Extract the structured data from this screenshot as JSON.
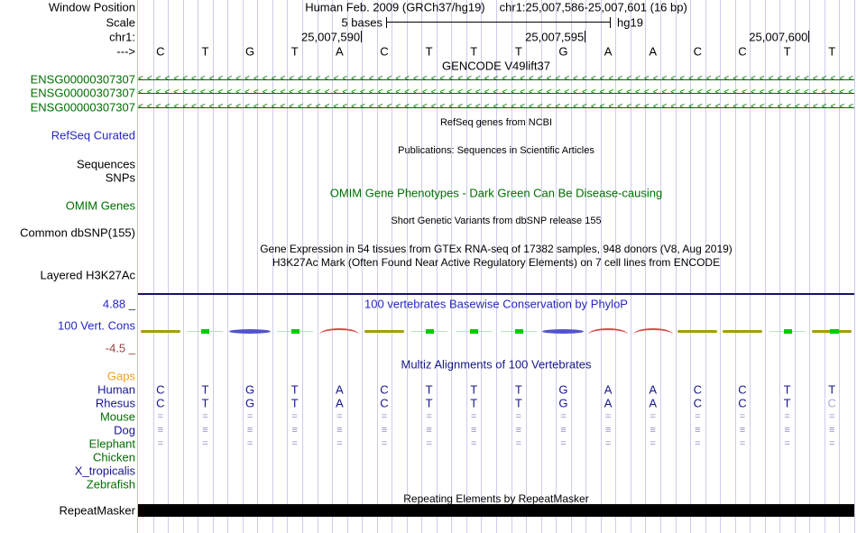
{
  "header": {
    "assembly": "Human Feb. 2009 (GRCh37/hg19)",
    "position": "chr1:25,007,586-25,007,601 (16 bp)"
  },
  "ruler": {
    "window_position_label": "Window Position",
    "scale_row_label": "Scale",
    "scale_label": "5 bases",
    "assembly_short": "hg19",
    "chrom_label": "chr1:",
    "strand_label": "--->",
    "position_ticks": [
      {
        "label": "25,007,590",
        "base_index": 4
      },
      {
        "label": "25,007,595",
        "base_index": 9
      },
      {
        "label": "25,007,600",
        "base_index": 14
      }
    ]
  },
  "sequence": {
    "bases": [
      "C",
      "T",
      "G",
      "T",
      "A",
      "C",
      "T",
      "T",
      "T",
      "G",
      "A",
      "A",
      "C",
      "C",
      "T",
      "T"
    ]
  },
  "tracks": {
    "gencode": {
      "title": "GENCODE V49lift37",
      "genes": [
        "ENSG00000307307",
        "ENSG00000307307",
        "ENSG00000307307"
      ],
      "strand": "left"
    },
    "refseq": {
      "title": "RefSeq genes from NCBI",
      "label": "RefSeq Curated"
    },
    "publications": {
      "title": "Publications: Sequences in Scientific Articles",
      "labels": [
        "Sequences",
        "SNPs"
      ]
    },
    "omim": {
      "title": "OMIM Gene Phenotypes - Dark Green Can Be Disease-causing",
      "label": "OMIM Genes"
    },
    "dbsnp": {
      "title": "Short Genetic Variants from dbSNP release 155",
      "label": "Common dbSNP(155)"
    },
    "gtex": {
      "title": "Gene Expression in 54 tissues from GTEx RNA-seq of 17382 samples, 948 donors (V8, Aug 2019)"
    },
    "h3k27ac": {
      "title": "H3K27Ac Mark (Often Found Near Active Regulatory Elements) on 7 cell lines from ENCODE",
      "label": "Layered H3K27Ac"
    },
    "phylop": {
      "title": "100 vertebrates Basewise Conservation by PhyloP",
      "label": "100 Vert. Cons",
      "max": "4.88 _",
      "min": "-4.5 _",
      "marks": [
        "olive",
        "green",
        "blue",
        "green",
        "red",
        "olive",
        "green",
        "green",
        "green",
        "blue",
        "red",
        "red",
        "olive",
        "olive",
        "green",
        "olive-green"
      ]
    },
    "multiz": {
      "title": "Multiz Alignments of 100 Vertebrates",
      "gaps_label": "Gaps",
      "species": [
        {
          "name": "Human",
          "color": "navy",
          "row": [
            "C",
            "T",
            "G",
            "T",
            "A",
            "C",
            "T",
            "T",
            "T",
            "G",
            "A",
            "A",
            "C",
            "C",
            "T",
            "T"
          ]
        },
        {
          "name": "Rhesus",
          "color": "navy",
          "row": [
            "C",
            "T",
            "G",
            "T",
            "A",
            "C",
            "T",
            "T",
            "T",
            "G",
            "A",
            "A",
            "C",
            "C",
            "T",
            "C"
          ],
          "faded_last": true
        },
        {
          "name": "Mouse",
          "color": "green",
          "fill": "="
        },
        {
          "name": "Dog",
          "color": "navy",
          "fill": "≡"
        },
        {
          "name": "Elephant",
          "color": "green",
          "fill": "="
        },
        {
          "name": "Chicken",
          "color": "green"
        },
        {
          "name": "X_tropicalis",
          "color": "navy"
        },
        {
          "name": "Zebrafish",
          "color": "green"
        }
      ]
    },
    "repeatmasker": {
      "title": "Repeating Elements by RepeatMasker",
      "label": "RepeatMasker"
    }
  },
  "colors": {
    "track_green": "#006e00",
    "track_blue": "#2626c6",
    "navy": "#16168c",
    "orange": "#efa020",
    "maroon": "#964444",
    "faded_base": "#a8a8d8",
    "align_glyph": "#8f8fc4",
    "gridline": "#ccccee",
    "guide_pink": "#ffb0b0",
    "cons_olive": "#a0a000",
    "cons_green": "#00cc00",
    "cons_green_line": "#b6e6b6",
    "cons_blue": "#5353cc",
    "cons_red": "#e04646",
    "repeat_black": "#000000"
  }
}
